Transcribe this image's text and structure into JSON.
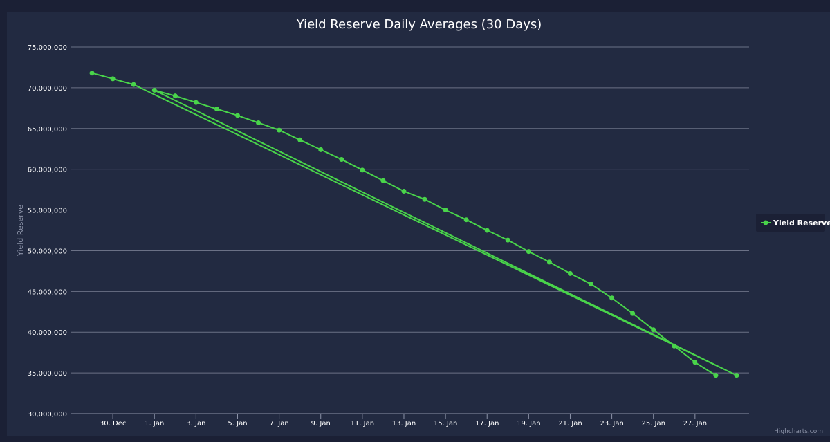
{
  "chart_data": {
    "type": "line",
    "title": "Yield Reserve Daily Averages (30 Days)",
    "xlabel": "",
    "ylabel": "Yield Reserve",
    "ylim": [
      30000000,
      75000000
    ],
    "y_ticks": [
      30000000,
      35000000,
      40000000,
      45000000,
      50000000,
      55000000,
      60000000,
      65000000,
      70000000,
      75000000
    ],
    "y_tick_labels": [
      "30,000,000",
      "35,000,000",
      "40,000,000",
      "45,000,000",
      "50,000,000",
      "55,000,000",
      "60,000,000",
      "65,000,000",
      "70,000,000",
      "75,000,000"
    ],
    "x_range_days": [
      -4.0,
      28.6
    ],
    "x_ticks": [
      -2,
      0,
      2,
      4,
      6,
      8,
      10,
      12,
      14,
      16,
      18,
      20,
      22,
      24,
      26
    ],
    "x_tick_labels": [
      "30. Dec",
      "1. Jan",
      "3. Jan",
      "5. Jan",
      "7. Jan",
      "9. Jan",
      "11. Jan",
      "13. Jan",
      "15. Jan",
      "17. Jan",
      "19. Jan",
      "21. Jan",
      "23. Jan",
      "25. Jan",
      "27. Jan"
    ],
    "x_unit_note": "days relative to 1. Jan",
    "legend_position": "right",
    "credits": "Highcharts.com",
    "series": [
      {
        "name": "Yield Reserve",
        "color": "#49d44a",
        "x": [
          -3,
          -2,
          -1,
          0,
          1,
          2,
          3,
          4,
          5,
          6,
          7,
          8,
          9,
          10,
          11,
          12,
          13,
          14,
          15,
          16,
          17,
          18,
          19,
          20,
          21,
          22,
          23,
          24,
          25,
          26,
          27,
          28
        ],
        "values": [
          71800000,
          71100000,
          70400000,
          69700000,
          69000000,
          68200000,
          67400000,
          66600000,
          65700000,
          64800000,
          63600000,
          62400000,
          61200000,
          59900000,
          58600000,
          57300000,
          56300000,
          55000000,
          53800000,
          52500000,
          51300000,
          49900000,
          48600000,
          47200000,
          45900000,
          44200000,
          42300000,
          40300000,
          38300000,
          36300000,
          34700000,
          34700000
        ],
        "path_order": [
          0,
          1,
          2,
          31,
          3,
          4,
          5,
          6,
          7,
          8,
          9,
          10,
          11,
          12,
          13,
          14,
          15,
          16,
          17,
          18,
          19,
          20,
          21,
          22,
          23,
          24,
          25,
          26,
          27,
          28,
          29,
          30
        ]
      }
    ]
  }
}
